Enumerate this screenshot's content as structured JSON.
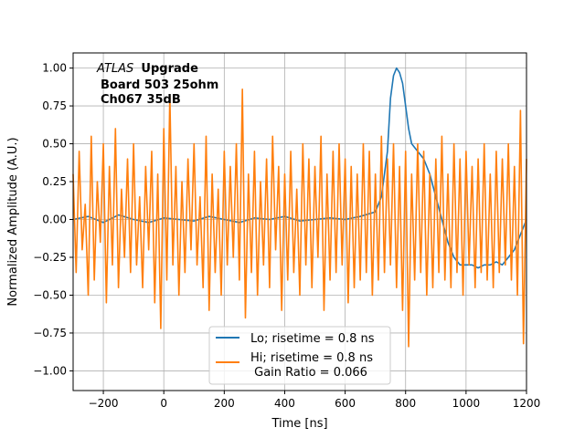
{
  "chart_data": {
    "type": "line",
    "xlabel": "Time [ns]",
    "ylabel": "Normalized Amplitude (A.U.)",
    "xlim": [
      -300,
      1200
    ],
    "ylim": [
      -1.13,
      1.1
    ],
    "xticks": [
      -200,
      0,
      200,
      400,
      600,
      800,
      1000,
      1200
    ],
    "xtick_labels": [
      "−200",
      "0",
      "200",
      "400",
      "600",
      "800",
      "1000",
      "1200"
    ],
    "yticks": [
      -1.0,
      -0.75,
      -0.5,
      -0.25,
      0.0,
      0.25,
      0.5,
      0.75,
      1.0
    ],
    "ytick_labels": [
      "−1.00",
      "−0.75",
      "−0.50",
      "−0.25",
      "0.00",
      "0.25",
      "0.50",
      "0.75",
      "1.00"
    ],
    "grid": true,
    "legend_placement": "lower-center",
    "annotation": {
      "italic": "ATLAS",
      "bold": "Upgrade",
      "line2": "Board 503 25ohm",
      "line3": "Ch067 35dB"
    },
    "series": [
      {
        "name": "Lo; risetime = 0.8 ns",
        "color": "#1f77b4",
        "x": [
          -300,
          -250,
          -200,
          -150,
          -100,
          -50,
          0,
          50,
          100,
          150,
          200,
          250,
          300,
          350,
          400,
          450,
          500,
          550,
          600,
          650,
          700,
          720,
          740,
          750,
          760,
          770,
          780,
          790,
          800,
          810,
          820,
          840,
          860,
          880,
          900,
          920,
          940,
          960,
          980,
          1000,
          1020,
          1040,
          1060,
          1080,
          1100,
          1120,
          1140,
          1160,
          1180,
          1200
        ],
        "y": [
          0.0,
          0.02,
          -0.02,
          0.03,
          0.0,
          -0.02,
          0.01,
          0.0,
          -0.01,
          0.02,
          0.0,
          -0.02,
          0.01,
          0.0,
          0.02,
          -0.01,
          0.0,
          0.01,
          0.0,
          0.02,
          0.05,
          0.15,
          0.45,
          0.8,
          0.95,
          1.0,
          0.97,
          0.9,
          0.75,
          0.6,
          0.5,
          0.45,
          0.4,
          0.3,
          0.15,
          0.0,
          -0.15,
          -0.25,
          -0.3,
          -0.3,
          -0.3,
          -0.32,
          -0.3,
          -0.3,
          -0.28,
          -0.3,
          -0.25,
          -0.2,
          -0.1,
          0.0
        ]
      },
      {
        "name": "Hi; risetime = 0.8 ns\n Gain Ratio = 0.066",
        "color": "#ff7f0e",
        "x": [
          -300,
          -290,
          -280,
          -270,
          -260,
          -250,
          -240,
          -230,
          -220,
          -210,
          -200,
          -190,
          -180,
          -170,
          -160,
          -150,
          -140,
          -130,
          -120,
          -110,
          -100,
          -90,
          -80,
          -70,
          -60,
          -50,
          -40,
          -30,
          -20,
          -10,
          0,
          10,
          20,
          30,
          40,
          50,
          60,
          70,
          80,
          90,
          100,
          110,
          120,
          130,
          140,
          150,
          160,
          170,
          180,
          190,
          200,
          210,
          220,
          230,
          240,
          250,
          260,
          270,
          280,
          290,
          300,
          310,
          320,
          330,
          340,
          350,
          360,
          370,
          380,
          390,
          400,
          410,
          420,
          430,
          440,
          450,
          460,
          470,
          480,
          490,
          500,
          510,
          520,
          530,
          540,
          550,
          560,
          570,
          580,
          590,
          600,
          610,
          620,
          630,
          640,
          650,
          660,
          670,
          680,
          690,
          700,
          710,
          720,
          730,
          740,
          750,
          760,
          770,
          780,
          790,
          800,
          810,
          820,
          830,
          840,
          850,
          860,
          870,
          880,
          890,
          900,
          910,
          920,
          930,
          940,
          950,
          960,
          970,
          980,
          990,
          1000,
          1010,
          1020,
          1030,
          1040,
          1050,
          1060,
          1070,
          1080,
          1090,
          1100,
          1110,
          1120,
          1130,
          1140,
          1150,
          1160,
          1170,
          1180,
          1190,
          1200
        ],
        "y": [
          0.3,
          -0.35,
          0.45,
          -0.2,
          0.1,
          -0.5,
          0.55,
          -0.4,
          0.25,
          -0.15,
          0.5,
          -0.55,
          0.35,
          -0.3,
          0.6,
          -0.45,
          0.2,
          -0.25,
          0.4,
          -0.35,
          0.5,
          -0.3,
          0.15,
          -0.45,
          0.35,
          -0.2,
          0.45,
          -0.55,
          0.3,
          -0.72,
          0.6,
          -0.4,
          0.82,
          -0.3,
          0.35,
          -0.5,
          0.25,
          -0.35,
          0.4,
          -0.2,
          0.5,
          -0.3,
          0.15,
          -0.45,
          0.55,
          -0.6,
          0.3,
          -0.35,
          0.2,
          -0.5,
          0.45,
          -0.3,
          0.35,
          -0.25,
          0.5,
          -0.4,
          0.86,
          -0.65,
          0.3,
          -0.35,
          0.45,
          -0.5,
          0.25,
          -0.3,
          0.4,
          -0.45,
          0.55,
          -0.2,
          0.35,
          -0.6,
          0.3,
          -0.4,
          0.45,
          -0.35,
          0.2,
          -0.5,
          0.5,
          -0.3,
          0.4,
          -0.45,
          0.35,
          -0.25,
          0.55,
          -0.6,
          0.3,
          -0.4,
          0.45,
          -0.35,
          0.5,
          -0.3,
          0.4,
          -0.55,
          0.35,
          -0.45,
          0.3,
          -0.4,
          0.5,
          -0.35,
          0.45,
          -0.5,
          0.3,
          -0.4,
          0.55,
          -0.35,
          0.4,
          -0.3,
          0.5,
          -0.45,
          0.35,
          -0.6,
          0.45,
          -0.84,
          0.3,
          -0.4,
          0.5,
          -0.35,
          0.45,
          -0.5,
          0.3,
          -0.45,
          0.4,
          -0.35,
          0.55,
          -0.4,
          0.3,
          -0.45,
          0.5,
          -0.35,
          0.4,
          -0.5,
          0.45,
          -0.3,
          0.35,
          -0.45,
          0.4,
          -0.35,
          0.5,
          -0.4,
          0.3,
          -0.45,
          0.45,
          -0.35,
          0.4,
          -0.3,
          0.5,
          -0.4,
          0.35,
          -0.5,
          0.72,
          -0.82,
          0.4
        ]
      }
    ]
  }
}
